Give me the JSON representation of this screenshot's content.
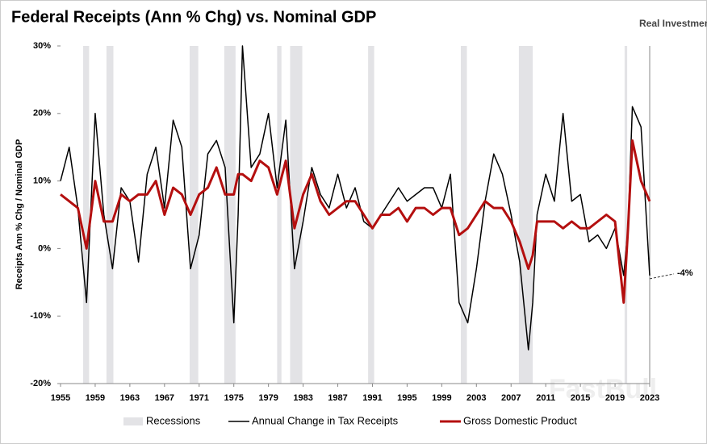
{
  "chart_data": {
    "type": "line",
    "title": "Federal Receipts (Ann % Chg) vs. Nominal GDP",
    "source": "Real Investment Advice",
    "watermark": "FastBull",
    "ylabel": "Receipts Ann % Chg / Nominal GDP",
    "x": [
      1955,
      1956,
      1957,
      1958,
      1959,
      1960,
      1961,
      1962,
      1963,
      1964,
      1965,
      1966,
      1967,
      1968,
      1969,
      1970,
      1971,
      1972,
      1973,
      1974,
      1975,
      1975.5,
      1976,
      1977,
      1978,
      1979,
      1980,
      1981,
      1982,
      1983,
      1984,
      1985,
      1986,
      1987,
      1988,
      1989,
      1990,
      1991,
      1992,
      1993,
      1994,
      1995,
      1996,
      1997,
      1998,
      1999,
      2000,
      2001,
      2002,
      2003,
      2004,
      2005,
      2006,
      2007,
      2008,
      2009,
      2009.5,
      2010,
      2011,
      2012,
      2013,
      2014,
      2015,
      2016,
      2017,
      2018,
      2019,
      2020,
      2020.5,
      2021,
      2022,
      2023
    ],
    "series": [
      {
        "name": "Annual Change in Tax Receipts",
        "color": "#000000",
        "values": [
          10,
          15,
          6,
          -8,
          20,
          5,
          -3,
          9,
          7,
          -2,
          11,
          15,
          6,
          19,
          15,
          -3,
          2,
          14,
          16,
          12,
          -11,
          5,
          30,
          12,
          14,
          20,
          9,
          19,
          -3,
          4,
          12,
          8,
          6,
          11,
          6,
          9,
          4,
          3,
          5,
          7,
          9,
          7,
          8,
          9,
          9,
          6,
          11,
          -8,
          -11,
          -3,
          7,
          14,
          11,
          5,
          -2,
          -15,
          -8,
          5,
          11,
          7,
          20,
          7,
          8,
          1,
          2,
          0,
          3,
          -4,
          3,
          21,
          18,
          -4
        ]
      },
      {
        "name": "Gross Domestic Product",
        "color": "#b40f0f",
        "values": [
          8,
          7,
          6,
          0,
          10,
          4,
          4,
          8,
          7,
          8,
          8,
          10,
          5,
          9,
          8,
          5,
          8,
          9,
          12,
          8,
          8,
          11,
          11,
          10,
          13,
          12,
          8,
          13,
          3,
          8,
          11,
          7,
          5,
          6,
          7,
          7,
          5,
          3,
          5,
          5,
          6,
          4,
          6,
          6,
          5,
          6,
          6,
          2,
          3,
          5,
          7,
          6,
          6,
          4,
          1,
          -3,
          -1,
          4,
          4,
          4,
          3,
          4,
          3,
          3,
          4,
          5,
          4,
          -8,
          3,
          16,
          10,
          7
        ]
      }
    ],
    "recessions_label": "Recessions",
    "recessions": [
      [
        1957.6,
        1958.3
      ],
      [
        1960.3,
        1961.1
      ],
      [
        1969.9,
        1970.9
      ],
      [
        1973.9,
        1975.2
      ],
      [
        1980.0,
        1980.5
      ],
      [
        1981.5,
        1982.9
      ],
      [
        1990.5,
        1991.2
      ],
      [
        2001.2,
        2001.9
      ],
      [
        2007.9,
        2009.5
      ],
      [
        2020.1,
        2020.4
      ]
    ],
    "annotations": [
      {
        "text": "-4%",
        "value": -4
      }
    ],
    "xlim": [
      1955,
      2023
    ],
    "xticks": [
      1955,
      1959,
      1963,
      1967,
      1971,
      1975,
      1979,
      1983,
      1987,
      1991,
      1995,
      1999,
      2003,
      2007,
      2011,
      2015,
      2019,
      2023
    ],
    "ylim": [
      -20,
      30
    ],
    "yticks": [
      {
        "value": -20,
        "label": "-20%"
      },
      {
        "value": -10,
        "label": "-10%"
      },
      {
        "value": 0,
        "label": "0%"
      },
      {
        "value": 10,
        "label": "10%"
      },
      {
        "value": 20,
        "label": "20%"
      },
      {
        "value": 30,
        "label": "30%"
      }
    ]
  }
}
